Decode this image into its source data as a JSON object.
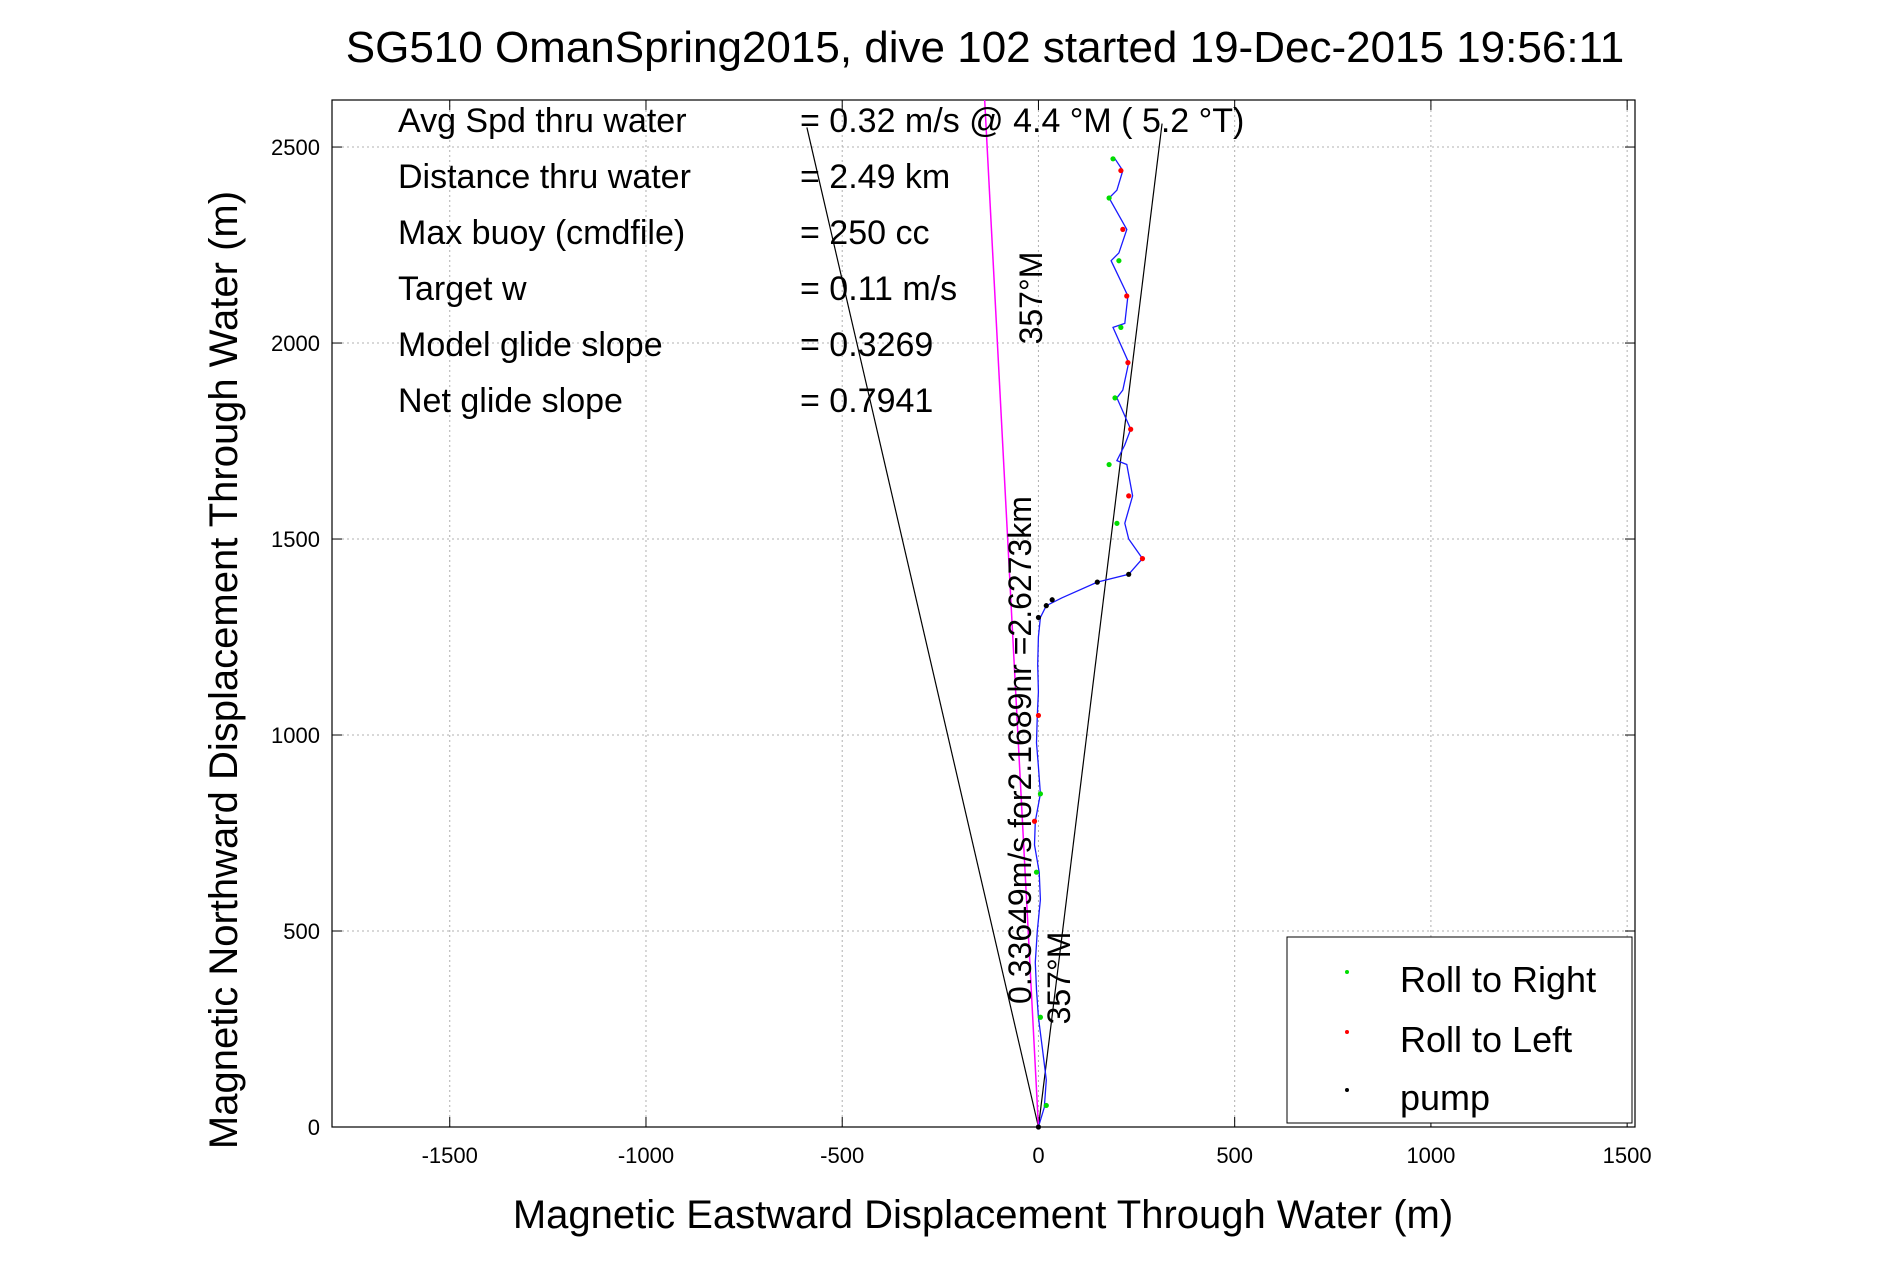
{
  "chart_data": {
    "type": "scatter",
    "title": "SG510 OmanSpring2015, dive 102 started 19-Dec-2015 19:56:11",
    "xlabel": "Magnetic Eastward Displacement Through Water (m)",
    "ylabel": "Magnetic Northward Displacement Through Water (m)",
    "xlim": [
      -1800,
      1520
    ],
    "ylim": [
      0,
      2620
    ],
    "grid": true,
    "xticks": [
      -1500,
      -1000,
      -500,
      0,
      500,
      1000,
      1500
    ],
    "yticks": [
      0,
      500,
      1000,
      1500,
      2000,
      2500
    ],
    "stats": [
      {
        "label": "Avg Spd thru water",
        "value": "=  0.32 m/s @   4.4 °M (  5.2 °T)"
      },
      {
        "label": "Distance thru water",
        "value": "=  2.49 km"
      },
      {
        "label": "Max buoy (cmdfile)",
        "value": "= 250 cc"
      },
      {
        "label": "Target w",
        "value": "= 0.11 m/s"
      },
      {
        "label": "Model glide slope",
        "value": "= 0.3269"
      },
      {
        "label": "Net glide slope",
        "value": "= 0.7941"
      }
    ],
    "annotations": {
      "heading_label_near": "357°M",
      "heading_label_far": "357°M",
      "speed_label": "0.33649m/s for2.1689hr =2.6273km"
    },
    "cone_lines": [
      {
        "name": "left-bound",
        "x": [
          0,
          -590
        ],
        "y": [
          0,
          2550
        ]
      },
      {
        "name": "right-bound",
        "x": [
          0,
          315
        ],
        "y": [
          0,
          2560
        ]
      }
    ],
    "heading_line": {
      "x": [
        0,
        -137
      ],
      "y": [
        0,
        2620
      ],
      "color": "#ff00ff"
    },
    "track": {
      "color": "#1a1aff",
      "x": [
        0,
        15,
        20,
        10,
        0,
        -5,
        -8,
        -3,
        5,
        2,
        -10,
        -8,
        5,
        0,
        -5,
        -3,
        0,
        -2,
        0,
        5,
        20,
        60,
        150,
        230,
        265,
        230,
        220,
        240,
        225,
        200,
        220,
        235,
        200,
        215,
        230,
        190,
        220,
        228,
        185,
        205,
        225,
        180,
        200,
        215,
        195
      ],
      "y": [
        0,
        50,
        120,
        200,
        280,
        350,
        420,
        500,
        580,
        650,
        720,
        780,
        850,
        920,
        980,
        1050,
        1110,
        1180,
        1250,
        1300,
        1330,
        1350,
        1390,
        1410,
        1450,
        1500,
        1540,
        1610,
        1690,
        1700,
        1740,
        1780,
        1860,
        1880,
        1950,
        2040,
        2050,
        2120,
        2210,
        2230,
        2290,
        2370,
        2390,
        2440,
        2470
      ]
    },
    "legend": {
      "position": "bottom-right",
      "entries": [
        {
          "label": "Roll to Right",
          "color": "#00dd00"
        },
        {
          "label": "Roll to Left",
          "color": "#ff0000"
        },
        {
          "label": "pump",
          "color": "#000000"
        }
      ]
    },
    "roll_right_points": {
      "x": [
        20,
        5,
        -5,
        5,
        200,
        180,
        195,
        210,
        205,
        180,
        190
      ],
      "y": [
        55,
        280,
        650,
        850,
        1540,
        1690,
        1860,
        2040,
        2210,
        2370,
        2470
      ]
    },
    "roll_left_points": {
      "x": [
        -10,
        0,
        265,
        230,
        235,
        228,
        225,
        215,
        210
      ],
      "y": [
        780,
        1050,
        1450,
        1610,
        1780,
        1950,
        2120,
        2290,
        2440
      ]
    },
    "pump_points": {
      "x": [
        0,
        0,
        20,
        35,
        150,
        230
      ],
      "y": [
        0,
        1300,
        1330,
        1345,
        1390,
        1410
      ]
    }
  }
}
